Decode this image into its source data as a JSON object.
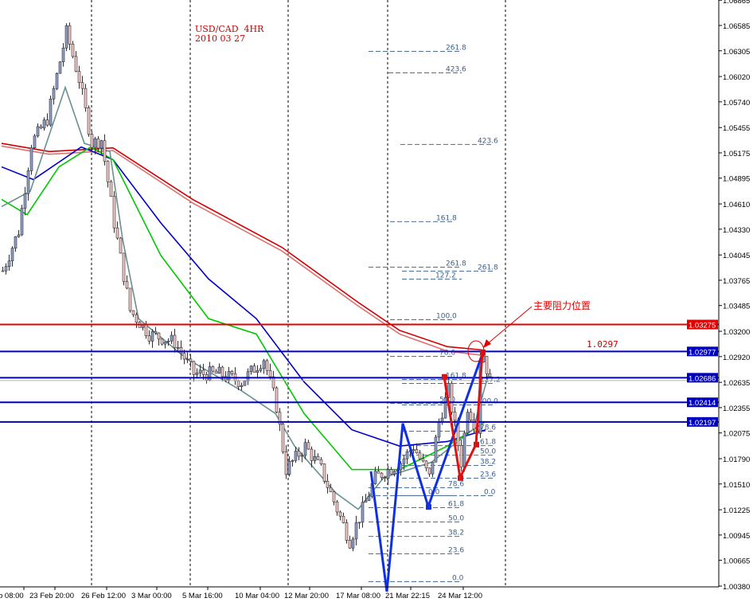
{
  "chart_data": {
    "type": "candlestick",
    "title": "USD/CAD  4HR",
    "subtitle": "2010 03 27",
    "annotation": "主要阻力位置",
    "level_label": "1.0297",
    "ylim": [
      1.0038,
      1.06865
    ],
    "y_ticks": [
      "1.06865",
      "1.06585",
      "1.06305",
      "1.06020",
      "1.05740",
      "1.05455",
      "1.05175",
      "1.04895",
      "1.04610",
      "1.04330",
      "1.04045",
      "1.03765",
      "1.03485",
      "1.03200",
      "1.02920",
      "1.02635",
      "1.02355",
      "1.02075",
      "1.01790",
      "1.01510",
      "1.01225",
      "1.00945",
      "1.00665",
      "1.00380"
    ],
    "x_ticks": [
      "b 08:00",
      "23 Feb 20:00",
      "26 Feb 12:00",
      "3 Mar 00:00",
      "5 Mar 16:00",
      "10 Mar 04:00",
      "12 Mar 20:00",
      "17 Mar 08:00",
      "21 Mar 22:15",
      "24 Mar 12:00"
    ],
    "price_path": [
      [
        0,
        1.0387
      ],
      [
        5,
        1.0431
      ],
      [
        9,
        1.0528
      ],
      [
        14,
        1.0555
      ],
      [
        20,
        1.0651
      ],
      [
        24,
        1.0599
      ],
      [
        28,
        1.0528
      ],
      [
        31,
        1.0532
      ],
      [
        35,
        1.044
      ],
      [
        40,
        1.0343
      ],
      [
        46,
        1.0317
      ],
      [
        54,
        1.0308
      ],
      [
        60,
        1.0273
      ],
      [
        68,
        1.0273
      ],
      [
        75,
        1.0264
      ],
      [
        82,
        1.029
      ],
      [
        86,
        1.0237
      ],
      [
        89,
        1.0167
      ],
      [
        95,
        1.0193
      ],
      [
        100,
        1.0167
      ],
      [
        105,
        1.0123
      ],
      [
        109,
        1.0088
      ],
      [
        112,
        1.0114
      ],
      [
        117,
        1.0158
      ],
      [
        125,
        1.0175
      ],
      [
        129,
        1.0193
      ],
      [
        134,
        1.0158
      ],
      [
        137,
        1.022
      ],
      [
        140,
        1.0255
      ],
      [
        144,
        1.0175
      ],
      [
        146,
        1.0237
      ],
      [
        149,
        1.0211
      ],
      [
        150,
        1.029
      ],
      [
        151,
        1.0294
      ],
      [
        153,
        1.0264
      ]
    ],
    "moving_averages": [
      {
        "color": "#d00000",
        "points": [
          [
            0,
            1.0528
          ],
          [
            15,
            1.0519
          ],
          [
            35,
            1.0523
          ],
          [
            60,
            1.0466
          ],
          [
            88,
            1.0413
          ],
          [
            112,
            1.0352
          ],
          [
            125,
            1.0321
          ],
          [
            140,
            1.0303
          ],
          [
            152,
            1.0299
          ]
        ]
      },
      {
        "color": "#e07070",
        "points": [
          [
            0,
            1.0525
          ],
          [
            15,
            1.0516
          ],
          [
            35,
            1.052
          ],
          [
            60,
            1.0462
          ],
          [
            88,
            1.0409
          ],
          [
            112,
            1.0348
          ],
          [
            125,
            1.0317
          ],
          [
            140,
            1.0298
          ],
          [
            152,
            1.0293
          ]
        ]
      },
      {
        "color": "#0000c8",
        "points": [
          [
            0,
            1.0502
          ],
          [
            10,
            1.0488
          ],
          [
            25,
            1.0524
          ],
          [
            35,
            1.051
          ],
          [
            50,
            1.044
          ],
          [
            65,
            1.0378
          ],
          [
            80,
            1.0334
          ],
          [
            95,
            1.0264
          ],
          [
            110,
            1.0211
          ],
          [
            125,
            1.0193
          ],
          [
            140,
            1.0198
          ],
          [
            152,
            1.0211
          ]
        ]
      },
      {
        "color": "#00c800",
        "points": [
          [
            0,
            1.0466
          ],
          [
            8,
            1.0449
          ],
          [
            18,
            1.0502
          ],
          [
            28,
            1.0524
          ],
          [
            35,
            1.051
          ],
          [
            50,
            1.0404
          ],
          [
            65,
            1.0334
          ],
          [
            80,
            1.0317
          ],
          [
            95,
            1.0229
          ],
          [
            110,
            1.0167
          ],
          [
            125,
            1.0167
          ],
          [
            140,
            1.0193
          ],
          [
            152,
            1.022
          ]
        ]
      },
      {
        "color": "#6a9090",
        "points": [
          [
            0,
            1.0458
          ],
          [
            9,
            1.0475
          ],
          [
            20,
            1.059
          ],
          [
            26,
            1.0528
          ],
          [
            34,
            1.0519
          ],
          [
            38,
            1.0422
          ],
          [
            43,
            1.0334
          ],
          [
            58,
            1.029
          ],
          [
            75,
            1.0255
          ],
          [
            86,
            1.0229
          ],
          [
            92,
            1.0193
          ],
          [
            105,
            1.0141
          ],
          [
            112,
            1.0123
          ],
          [
            120,
            1.0158
          ],
          [
            135,
            1.0175
          ],
          [
            148,
            1.0211
          ],
          [
            153,
            1.0273
          ]
        ]
      }
    ],
    "horizontal_lines": [
      {
        "price": "1.03275",
        "color": "#e00000"
      },
      {
        "price": "1.02977",
        "color": "#0000c0"
      },
      {
        "price": "1.02686",
        "color": "#0000c0"
      },
      {
        "price": "1.02414",
        "color": "#0000c0"
      },
      {
        "price": "1.02197",
        "color": "#0000c0"
      }
    ],
    "fib_levels": [
      {
        "label": "261.8",
        "price": 1.06299
      },
      {
        "label": "423.6",
        "price": 1.06061
      },
      {
        "label": "423.6",
        "price": 1.05268
      },
      {
        "label": "161.8",
        "price": 1.04413
      },
      {
        "label": "261.8",
        "price": 1.0391
      },
      {
        "label": "127.2",
        "price": 1.03778
      },
      {
        "label": "261.8",
        "price": 1.03866
      },
      {
        "label": "100.0",
        "price": 1.03328
      },
      {
        "label": "78.6",
        "price": 1.02923
      },
      {
        "label": "161.8",
        "price": 1.02667
      },
      {
        "label": "127.2",
        "price": 1.02623
      },
      {
        "label": "50.0",
        "price": 1.02403
      },
      {
        "label": "100.0",
        "price": 1.02385
      },
      {
        "label": "78.6",
        "price": 1.02094
      },
      {
        "label": "61.8",
        "price": 1.01935
      },
      {
        "label": "50.0",
        "price": 1.01829
      },
      {
        "label": "38.2",
        "price": 1.01715
      },
      {
        "label": "23.6",
        "price": 1.01574
      },
      {
        "label": "78.6",
        "price": 1.01468
      },
      {
        "label": "0.0",
        "price": 1.0138
      },
      {
        "label": "0.0",
        "price": 1.0138
      },
      {
        "label": "61.8",
        "price": 1.01248
      },
      {
        "label": "50.0",
        "price": 1.01089
      },
      {
        "label": "38.2",
        "price": 1.0093
      },
      {
        "label": "23.6",
        "price": 1.00737
      },
      {
        "label": "0.0",
        "price": 1.00428
      }
    ],
    "zigzag_blue": [
      [
        116,
        1.0165
      ],
      [
        121,
        1.0032
      ],
      [
        126,
        1.0218
      ],
      [
        134,
        1.0126
      ],
      [
        151,
        1.0295
      ]
    ],
    "zigzag_red": [
      [
        139,
        1.027
      ],
      [
        144,
        1.0158
      ],
      [
        149,
        1.0195
      ],
      [
        151,
        1.0297
      ]
    ],
    "colors": {
      "up_body": "#8fa0c8",
      "down_body": "#f0c8c8",
      "wick": "#303030",
      "grid": "#000000"
    }
  }
}
